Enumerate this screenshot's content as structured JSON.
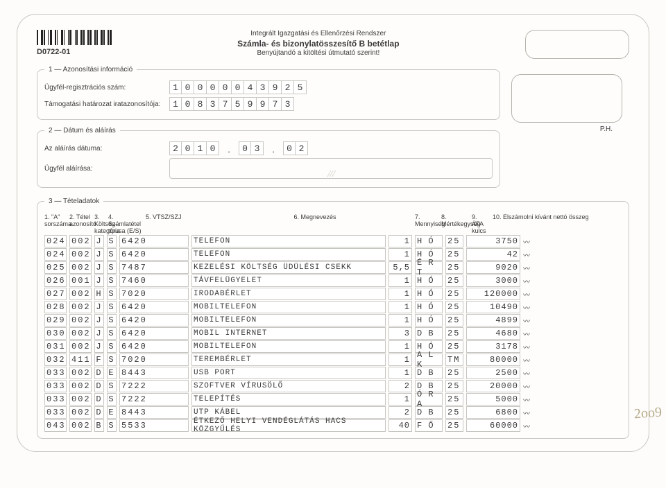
{
  "header": {
    "line1": "Integrált Igazgatási és Ellenőrzési Rendszer",
    "line2": "Számla- és bizonylatösszesítő B betétlap",
    "line3": "Benyújtandó a kitöltési útmutató szerint!",
    "formcode": "D0722-01",
    "ph": "P.H."
  },
  "section1": {
    "legend": "1 — Azonosítási információ",
    "reg_label": "Ügyfél-regisztrációs szám:",
    "reg_value": "1000004392 5",
    "reg_cells": [
      "1",
      "0",
      "0",
      "0",
      "0",
      "0",
      "4",
      "3",
      "9",
      "2",
      "5"
    ],
    "hat_label": "Támogatási határozat iratazonosítója:",
    "hat_cells": [
      "1",
      "0",
      "8",
      "3",
      "7",
      "5",
      "9",
      "9",
      "7",
      "3"
    ]
  },
  "section2": {
    "legend": "2 — Dátum és aláírás",
    "date_label": "Az aláírás dátuma:",
    "date_y": [
      "2",
      "0",
      "1",
      "0"
    ],
    "date_m": [
      "0",
      "3"
    ],
    "date_d": [
      "0",
      "2"
    ],
    "sig_label": "Ügyfél aláírása:"
  },
  "section3": {
    "legend": "3 — Tételadatok",
    "cols": {
      "c1": "1.\n\"A\"\nsorszáma",
      "c2": "2.\nTétel\nazonosító",
      "c3": "3.\nKöltség-\nkategória",
      "c4": "4.\nSzámlatétel\ntípusa (E/S)",
      "c5": "5.\nVTSZ/SZJ",
      "c6": "6.\nMegnevezés",
      "c7": "7.\nMennyiség",
      "c8": "8.\nMértékegység",
      "c9": "9.\nÁFA\nkulcs",
      "c10": "10.\nElszámolni kívánt nettó összeg"
    }
  },
  "rows": [
    {
      "sor": "024",
      "tetel": "002",
      "kat": "J",
      "tip": "S",
      "vtsz": "6420",
      "megn": "TELEFON",
      "menny": "1",
      "mert": "H Ó",
      "afa": "25",
      "netto": "3750"
    },
    {
      "sor": "024",
      "tetel": "002",
      "kat": "J",
      "tip": "S",
      "vtsz": "6420",
      "megn": "TELEFON",
      "menny": "1",
      "mert": "H Ó",
      "afa": "25",
      "netto": "42"
    },
    {
      "sor": "025",
      "tetel": "002",
      "kat": "J",
      "tip": "S",
      "vtsz": "7487",
      "megn": "KEZELÉSI KÖLTSÉG ÜDÜLÉSI CSEKK",
      "menny": "5,5",
      "mert": "É R T",
      "afa": "25",
      "netto": "9020"
    },
    {
      "sor": "026",
      "tetel": "001",
      "kat": "J",
      "tip": "S",
      "vtsz": "7460",
      "megn": "TÁVFELÜGYELET",
      "menny": "1",
      "mert": "H Ó",
      "afa": "25",
      "netto": "3000"
    },
    {
      "sor": "027",
      "tetel": "002",
      "kat": "H",
      "tip": "S",
      "vtsz": "7020",
      "megn": "IRODABÉRLET",
      "menny": "1",
      "mert": "H Ó",
      "afa": "25",
      "netto": "120000"
    },
    {
      "sor": "028",
      "tetel": "002",
      "kat": "J",
      "tip": "S",
      "vtsz": "6420",
      "megn": "MOBILTELEFON",
      "menny": "1",
      "mert": "H Ó",
      "afa": "25",
      "netto": "10490"
    },
    {
      "sor": "029",
      "tetel": "002",
      "kat": "J",
      "tip": "S",
      "vtsz": "6420",
      "megn": "MOBILTELEFON",
      "menny": "1",
      "mert": "H Ó",
      "afa": "25",
      "netto": "4899"
    },
    {
      "sor": "030",
      "tetel": "002",
      "kat": "J",
      "tip": "S",
      "vtsz": "6420",
      "megn": "MOBIL INTERNET",
      "menny": "3",
      "mert": "D B",
      "afa": "25",
      "netto": "4680"
    },
    {
      "sor": "031",
      "tetel": "002",
      "kat": "J",
      "tip": "S",
      "vtsz": "6420",
      "megn": "MOBILTELEFON",
      "menny": "1",
      "mert": "H Ó",
      "afa": "25",
      "netto": "3178"
    },
    {
      "sor": "032",
      "tetel": "411",
      "kat": "F",
      "tip": "S",
      "vtsz": "7020",
      "megn": "TEREMBÉRLET",
      "menny": "1",
      "mert": "A L K",
      "afa": "TM",
      "netto": "80000"
    },
    {
      "sor": "033",
      "tetel": "002",
      "kat": "D",
      "tip": "E",
      "vtsz": "8443",
      "megn": "USB PORT",
      "menny": "1",
      "mert": "D B",
      "afa": "25",
      "netto": "2500"
    },
    {
      "sor": "033",
      "tetel": "002",
      "kat": "D",
      "tip": "S",
      "vtsz": "7222",
      "megn": "SZOFTVER VÍRUSÖLŐ",
      "menny": "2",
      "mert": "D B",
      "afa": "25",
      "netto": "20000"
    },
    {
      "sor": "033",
      "tetel": "002",
      "kat": "D",
      "tip": "S",
      "vtsz": "7222",
      "megn": "TELEPÍTÉS",
      "menny": "1",
      "mert": "Ó R A",
      "afa": "25",
      "netto": "5000"
    },
    {
      "sor": "033",
      "tetel": "002",
      "kat": "D",
      "tip": "E",
      "vtsz": "8443",
      "megn": "UTP KÁBEL",
      "menny": "2",
      "mert": "D B",
      "afa": "25",
      "netto": "6800"
    },
    {
      "sor": "043",
      "tetel": "002",
      "kat": "B",
      "tip": "S",
      "vtsz": "5533",
      "megn": "ÉTKEZŐ HELYI VENDÉGLÁTÁS HACS KÖZGYŰLÉS",
      "menny": "40",
      "mert": "F Ő",
      "afa": "25",
      "netto": "60000"
    }
  ],
  "scribble": "2oo9",
  "colors": {
    "border": "#c8c6c2",
    "text": "#3a3a3a",
    "bg": "#fdfcfa"
  }
}
